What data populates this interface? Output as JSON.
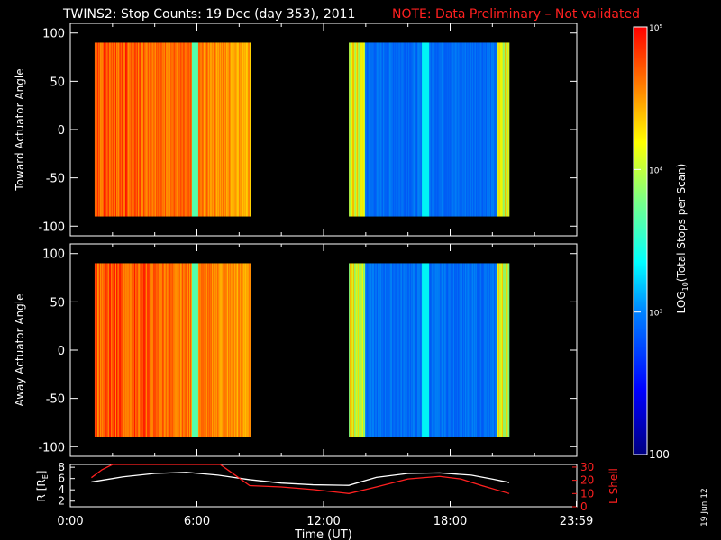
{
  "header": {
    "title": "TWINS2: Stop Counts: 19 Dec (day 353), 2011",
    "note": "NOTE: Data Preliminary – Not validated",
    "note_color": "#ff2020"
  },
  "stamp": "19 Jun 12",
  "colors": {
    "background": "#000000",
    "axes": "#ffffff",
    "lshell": "#ff2020",
    "r_line": "#ffffff"
  },
  "chart_data": [
    {
      "type": "heatmap",
      "name": "toward-panel",
      "ylabel": "Toward Actuator Angle",
      "ylim": [
        -110,
        110
      ],
      "yticks": [
        100,
        50,
        0,
        -50,
        -100
      ],
      "xlim": [
        0,
        24
      ],
      "angle_range": [
        -90,
        90
      ],
      "segments": [
        {
          "t_start": 1.15,
          "t_end": 8.55,
          "level": "high"
        },
        {
          "t_start": 13.2,
          "t_end": 20.8,
          "level": "low"
        }
      ]
    },
    {
      "type": "heatmap",
      "name": "away-panel",
      "ylabel": "Away Actuator Angle",
      "ylim": [
        -110,
        110
      ],
      "yticks": [
        100,
        50,
        0,
        -50,
        -100
      ],
      "xlim": [
        0,
        24
      ],
      "angle_range": [
        -90,
        90
      ],
      "segments": [
        {
          "t_start": 1.15,
          "t_end": 8.55,
          "level": "high"
        },
        {
          "t_start": 13.2,
          "t_end": 20.8,
          "level": "low"
        }
      ]
    },
    {
      "type": "line",
      "name": "orbit-panel",
      "xlabel": "Time (UT)",
      "x_tick_labels": [
        "0:00",
        "6:00",
        "12:00",
        "18:00",
        "23:59"
      ],
      "x_tick_hours": [
        0,
        6,
        12,
        18,
        23.98
      ],
      "xlim": [
        0,
        24
      ],
      "left_axis": {
        "label": "R [R_E]",
        "label_main": "R [R",
        "label_sub": "E",
        "label_end": "]",
        "ylim": [
          1,
          8.5
        ],
        "yticks": [
          2,
          4,
          6,
          8
        ]
      },
      "right_axis": {
        "label": "L Shell",
        "ylim": [
          0,
          32
        ],
        "yticks": [
          0,
          10,
          20,
          30
        ]
      },
      "series": [
        {
          "name": "R",
          "axis": "left",
          "x": [
            1.0,
            2.5,
            4.0,
            5.5,
            7.0,
            8.5,
            10.0,
            11.5,
            13.2,
            14.5,
            16.0,
            17.5,
            19.0,
            20.0,
            20.8
          ],
          "values": [
            5.4,
            6.3,
            6.9,
            7.1,
            6.6,
            5.8,
            5.2,
            4.9,
            4.8,
            6.2,
            6.9,
            7.0,
            6.6,
            5.9,
            5.3
          ]
        },
        {
          "name": "L Shell",
          "axis": "right",
          "x": [
            1.0,
            1.5,
            2.0,
            7.1,
            8.5,
            10.0,
            11.5,
            13.2,
            14.5,
            16.0,
            17.5,
            18.5,
            19.5,
            20.8
          ],
          "values": [
            22,
            28,
            32,
            32,
            16,
            15,
            13,
            10,
            15,
            21,
            23,
            21,
            16,
            10
          ]
        }
      ]
    }
  ],
  "colorbar": {
    "label_main": "LOG",
    "label_sub": "10",
    "label_rest": "(Total Stops per Scan)",
    "ticks": [
      {
        "value": 100,
        "label": "100"
      },
      {
        "value": 1000,
        "label": "10³"
      },
      {
        "value": 10000,
        "label": "10⁴"
      },
      {
        "value": 100000,
        "label": "10⁵"
      }
    ],
    "range": [
      100,
      100000
    ]
  }
}
